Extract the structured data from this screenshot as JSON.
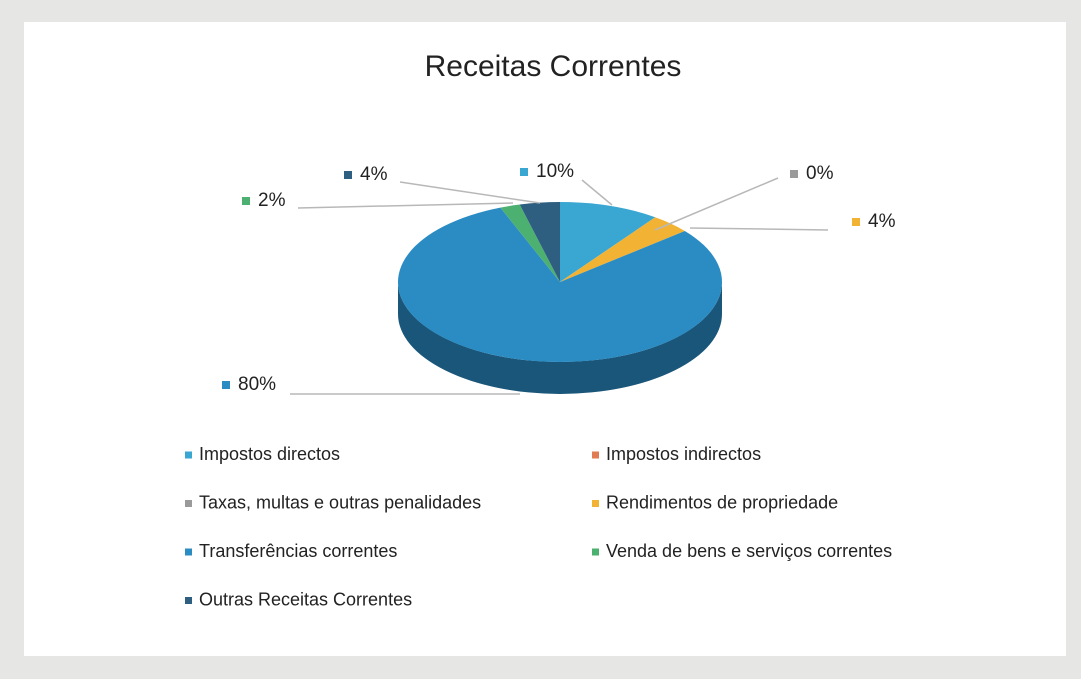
{
  "chart_data": {
    "type": "pie3d",
    "title": "Receitas Correntes",
    "categories": [
      "Impostos directos",
      "Impostos indirectos",
      "Taxas, multas e outras penalidades",
      "Rendimentos de propriedade",
      "Transferências correntes",
      "Venda de bens e serviços correntes",
      "Outras Receitas Correntes"
    ],
    "values": [
      10,
      0,
      0,
      4,
      80,
      2,
      4
    ],
    "value_labels": [
      "10%",
      null,
      "0%",
      "4%",
      "80%",
      "2%",
      "4%"
    ],
    "colors": [
      "#3aa6d2",
      "#e07b53",
      "#9a9a9a",
      "#f2b233",
      "#2b8cc4",
      "#4cb070",
      "#2f5f80"
    ],
    "legend": "bottom"
  }
}
